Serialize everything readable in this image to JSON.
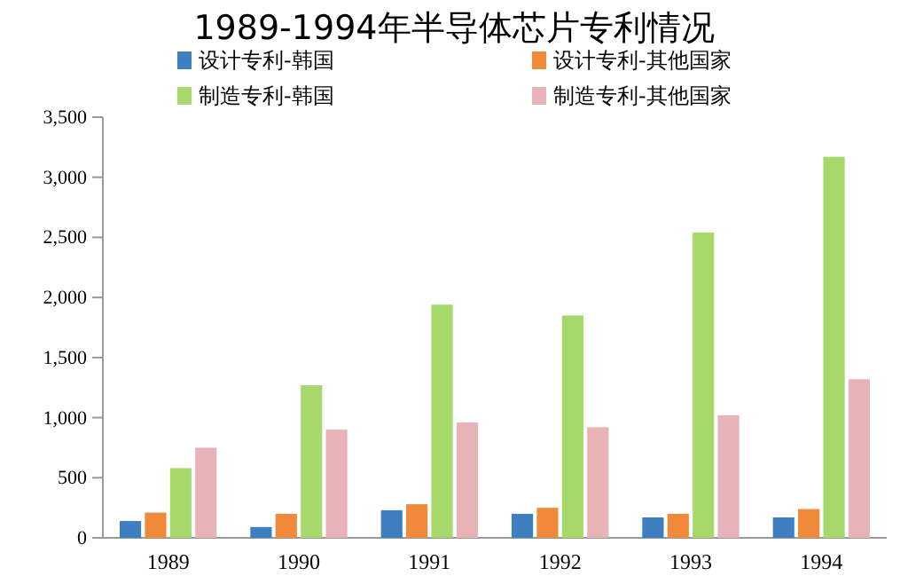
{
  "chart_data": {
    "type": "bar",
    "title": "1989-1994年半导体芯片专利情况",
    "categories": [
      "1989",
      "1990",
      "1991",
      "1992",
      "1993",
      "1994"
    ],
    "series": [
      {
        "name": "设计专利-韩国",
        "color": "#3d7fc1",
        "values": [
          140,
          90,
          230,
          200,
          170,
          170
        ]
      },
      {
        "name": "设计专利-其他国家",
        "color": "#f08a3a",
        "values": [
          210,
          200,
          280,
          250,
          200,
          240
        ]
      },
      {
        "name": "制造专利-韩国",
        "color": "#a6d86a",
        "values": [
          580,
          1270,
          1940,
          1850,
          2540,
          3170
        ]
      },
      {
        "name": "制造专利-其他国家",
        "color": "#e8b3b6",
        "values": [
          750,
          900,
          960,
          920,
          1020,
          1320
        ]
      }
    ],
    "ylim": [
      0,
      3500
    ],
    "yticks": [
      {
        "value": 0,
        "label": "0"
      },
      {
        "value": 500,
        "label": "500"
      },
      {
        "value": 1000,
        "label": "1,000"
      },
      {
        "value": 1500,
        "label": "1,500"
      },
      {
        "value": 2000,
        "label": "2,000"
      },
      {
        "value": 2500,
        "label": "2,500"
      },
      {
        "value": 3000,
        "label": "3,000"
      },
      {
        "value": 3500,
        "label": "3,500"
      }
    ],
    "legend": "top"
  }
}
